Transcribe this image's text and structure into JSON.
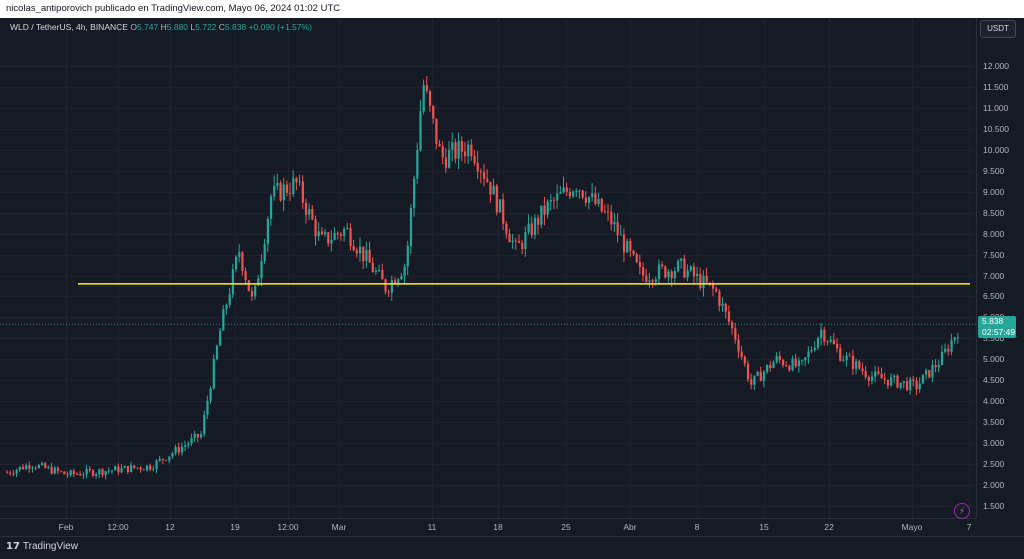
{
  "header": {
    "caption": "nicolas_antiporovich publicado en TradingView.com, Mayo 06, 2024 01:02 UTC"
  },
  "legend": {
    "symbol": "WLD / TetherUS, 4h, BINANCE",
    "open_label": "O",
    "open": "5.747",
    "high_label": "H",
    "high": "5.880",
    "low_label": "L",
    "low": "5.722",
    "close_label": "C",
    "close": "5.838",
    "change": "+0.090 (+1.57%)"
  },
  "price_scale": {
    "currency_button": "USDT",
    "labels": [
      "12.000",
      "11.500",
      "11.000",
      "10.500",
      "10.000",
      "9.500",
      "9.000",
      "8.500",
      "8.000",
      "7.500",
      "7.000",
      "6.500",
      "6.000",
      "5.500",
      "5.000",
      "4.500",
      "4.000",
      "3.500",
      "3.000",
      "2.500",
      "2.000",
      "1.500"
    ],
    "current_price": "5.838",
    "countdown": "02:57:49"
  },
  "time_axis": {
    "labels": [
      "Feb",
      "12:00",
      "12",
      "19",
      "12:00",
      "Mar",
      "11",
      "18",
      "25",
      "Abr",
      "8",
      "15",
      "22",
      "Mayo",
      "7"
    ]
  },
  "footer": {
    "brand": "TradingView",
    "logo_icon": "tradingview-logo-icon",
    "flash_icon": "lightning-icon"
  },
  "colors": {
    "up": "#26a69a",
    "down": "#ef5350",
    "level_line": "#ffeb3b",
    "background": "#161a25"
  },
  "chart_data": {
    "type": "candlestick",
    "symbol": "WLD / TetherUS",
    "interval": "4h",
    "exchange": "BINANCE",
    "ylim": [
      1.5,
      12.0
    ],
    "horizontal_line": 6.8,
    "approx_close_path": [
      {
        "t": "Jan 27",
        "v": 2.3
      },
      {
        "t": "Feb 1",
        "v": 2.5
      },
      {
        "t": "Feb 5",
        "v": 2.25
      },
      {
        "t": "Feb 12",
        "v": 2.45
      },
      {
        "t": "Feb 16",
        "v": 3.2
      },
      {
        "t": "Feb 18",
        "v": 5.8
      },
      {
        "t": "Feb 19",
        "v": 7.6
      },
      {
        "t": "Feb 20",
        "v": 6.3
      },
      {
        "t": "Feb 22",
        "v": 8.9
      },
      {
        "t": "Feb 24",
        "v": 9.2
      },
      {
        "t": "Feb 27",
        "v": 7.8
      },
      {
        "t": "Mar 1",
        "v": 8.1
      },
      {
        "t": "Mar 5",
        "v": 6.7
      },
      {
        "t": "Mar 8",
        "v": 7.3
      },
      {
        "t": "Mar 10",
        "v": 11.6
      },
      {
        "t": "Mar 12",
        "v": 9.8
      },
      {
        "t": "Mar 15",
        "v": 10.1
      },
      {
        "t": "Mar 17",
        "v": 9.1
      },
      {
        "t": "Mar 20",
        "v": 7.6
      },
      {
        "t": "Mar 23",
        "v": 8.6
      },
      {
        "t": "Mar 26",
        "v": 9.2
      },
      {
        "t": "Mar 30",
        "v": 8.3
      },
      {
        "t": "Apr 2",
        "v": 7.0
      },
      {
        "t": "Apr 6",
        "v": 7.2
      },
      {
        "t": "Apr 9",
        "v": 6.6
      },
      {
        "t": "Apr 12",
        "v": 5.5
      },
      {
        "t": "Apr 13",
        "v": 4.4
      },
      {
        "t": "Apr 16",
        "v": 5.0
      },
      {
        "t": "Apr 19",
        "v": 4.8
      },
      {
        "t": "Apr 22",
        "v": 5.7
      },
      {
        "t": "Apr 25",
        "v": 5.1
      },
      {
        "t": "Apr 28",
        "v": 4.6
      },
      {
        "t": "May 1",
        "v": 4.35
      },
      {
        "t": "May 3",
        "v": 5.0
      },
      {
        "t": "May 6",
        "v": 5.838
      }
    ]
  }
}
